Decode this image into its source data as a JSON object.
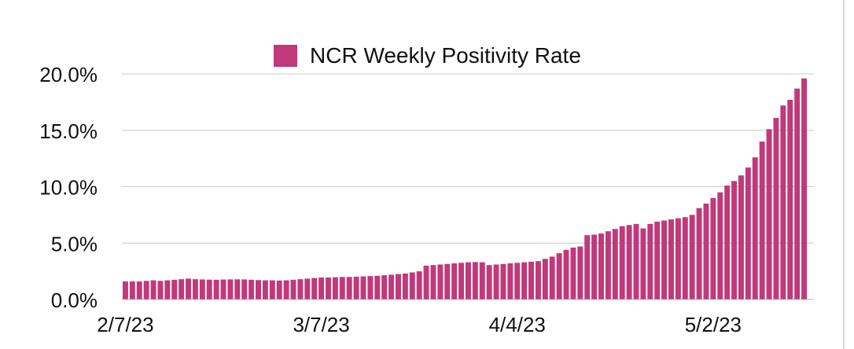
{
  "chart_data": {
    "type": "bar",
    "title": "",
    "xlabel": "",
    "ylabel": "",
    "ylim": [
      0,
      20
    ],
    "y_unit": "%",
    "grid": true,
    "legend_position": "top",
    "series": [
      {
        "name": "NCR Weekly Positivity Rate",
        "color": "#c0397a",
        "values": [
          1.6,
          1.6,
          1.6,
          1.65,
          1.7,
          1.65,
          1.7,
          1.75,
          1.8,
          1.85,
          1.8,
          1.78,
          1.76,
          1.75,
          1.77,
          1.78,
          1.79,
          1.78,
          1.75,
          1.72,
          1.7,
          1.7,
          1.68,
          1.7,
          1.75,
          1.8,
          1.85,
          1.9,
          1.95,
          1.95,
          1.97,
          2.0,
          2.0,
          2.02,
          2.05,
          2.08,
          2.1,
          2.15,
          2.2,
          2.25,
          2.3,
          2.4,
          2.5,
          3.0,
          3.05,
          3.1,
          3.15,
          3.2,
          3.25,
          3.3,
          3.32,
          3.3,
          3.05,
          3.1,
          3.15,
          3.2,
          3.25,
          3.3,
          3.35,
          3.4,
          3.6,
          3.8,
          4.1,
          4.4,
          4.6,
          4.7,
          5.7,
          5.75,
          5.85,
          6.05,
          6.25,
          6.5,
          6.6,
          6.7,
          6.3,
          6.7,
          6.9,
          7.0,
          7.1,
          7.2,
          7.3,
          7.5,
          8.1,
          8.5,
          9.0,
          9.5,
          10.1,
          10.5,
          11.0,
          11.7,
          12.6,
          14.0,
          15.1,
          16.1,
          17.2,
          17.7,
          18.7,
          19.6
        ]
      }
    ],
    "y_ticks": [
      0,
      5,
      10,
      15,
      20
    ],
    "y_tick_labels": [
      "0.0%",
      "5.0%",
      "10.0%",
      "15.0%",
      "20.0%"
    ],
    "x_tick_labels": [
      "2/7/23",
      "3/7/23",
      "4/4/23",
      "5/2/23"
    ]
  }
}
